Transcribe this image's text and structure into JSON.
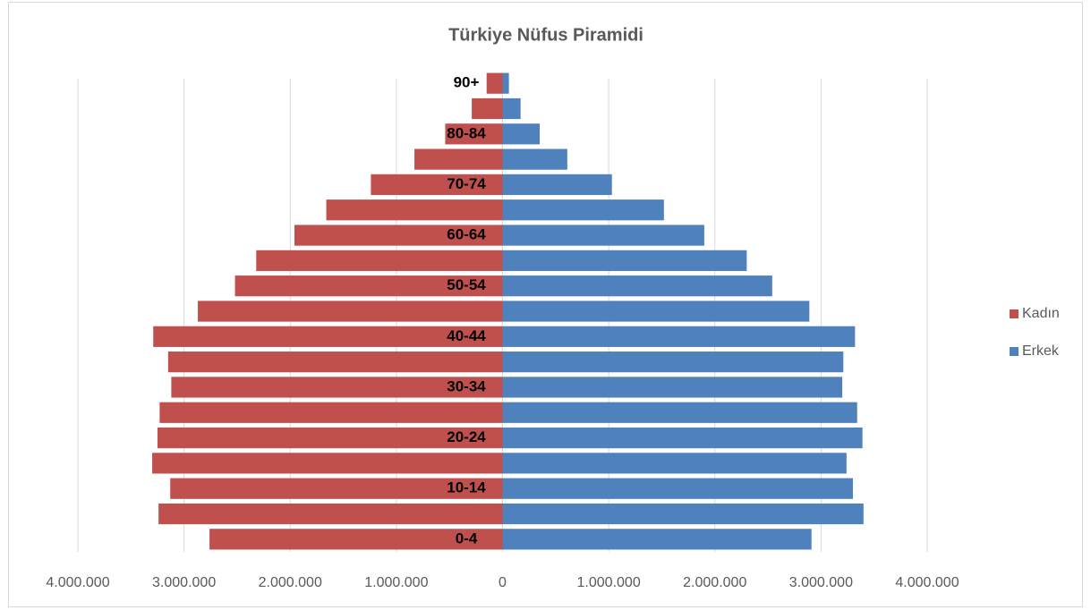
{
  "chart_data": {
    "type": "pyramid",
    "title": "Türkiye Nüfus Piramidi",
    "categories": [
      "0-4",
      null,
      "10-14",
      null,
      "20-24",
      null,
      "30-34",
      null,
      "40-44",
      null,
      "50-54",
      null,
      "60-64",
      null,
      "70-74",
      null,
      "80-84",
      null,
      "90+"
    ],
    "series": [
      {
        "name": "Kadın",
        "color": "#c0504d",
        "values": [
          -2760000,
          -3240000,
          -3130000,
          -3300000,
          -3250000,
          -3230000,
          -3120000,
          -3150000,
          -3290000,
          -2870000,
          -2520000,
          -2320000,
          -1960000,
          -1660000,
          -1240000,
          -830000,
          -540000,
          -290000,
          -150000
        ]
      },
      {
        "name": "Erkek",
        "color": "#4f81bd",
        "values": [
          2910000,
          3400000,
          3300000,
          3240000,
          3390000,
          3340000,
          3200000,
          3210000,
          3320000,
          2890000,
          2540000,
          2300000,
          1900000,
          1520000,
          1030000,
          610000,
          350000,
          170000,
          60000
        ]
      }
    ],
    "xlim": [
      -4000000,
      4000000
    ],
    "xticks": [
      {
        "value": -4000000,
        "label": "4.000.000"
      },
      {
        "value": -3000000,
        "label": "3.000.000"
      },
      {
        "value": -2000000,
        "label": "2.000.000"
      },
      {
        "value": -1000000,
        "label": "1.000.000"
      },
      0,
      {
        "value": 1000000,
        "label": "1.000.000"
      },
      {
        "value": 2000000,
        "label": "2.000.000"
      },
      {
        "value": 3000000,
        "label": "3.000.000"
      },
      {
        "value": 4000000,
        "label": "4.000.000"
      }
    ],
    "grid": true,
    "legend": "right"
  }
}
